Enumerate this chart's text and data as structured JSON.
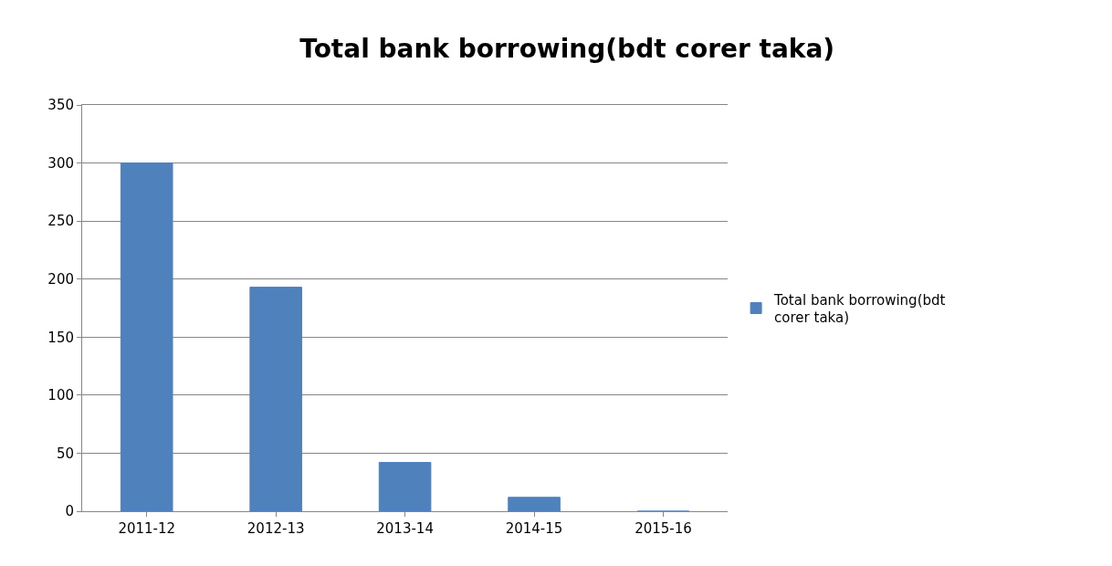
{
  "chart_data": {
    "type": "bar",
    "title": "Total bank borrowing(bdt corer taka)",
    "categories": [
      "2011-12",
      "2012-13",
      "2013-14",
      "2014-15",
      "2015-16"
    ],
    "series": [
      {
        "name": "Total bank borrowing(bdt corer taka)",
        "color": "#4f81bd",
        "values": [
          300,
          193,
          42,
          12,
          0
        ]
      }
    ],
    "ylim": [
      0,
      350
    ],
    "yticks": [
      0,
      50,
      100,
      150,
      200,
      250,
      300,
      350
    ],
    "grid": "y",
    "legend": "right"
  }
}
